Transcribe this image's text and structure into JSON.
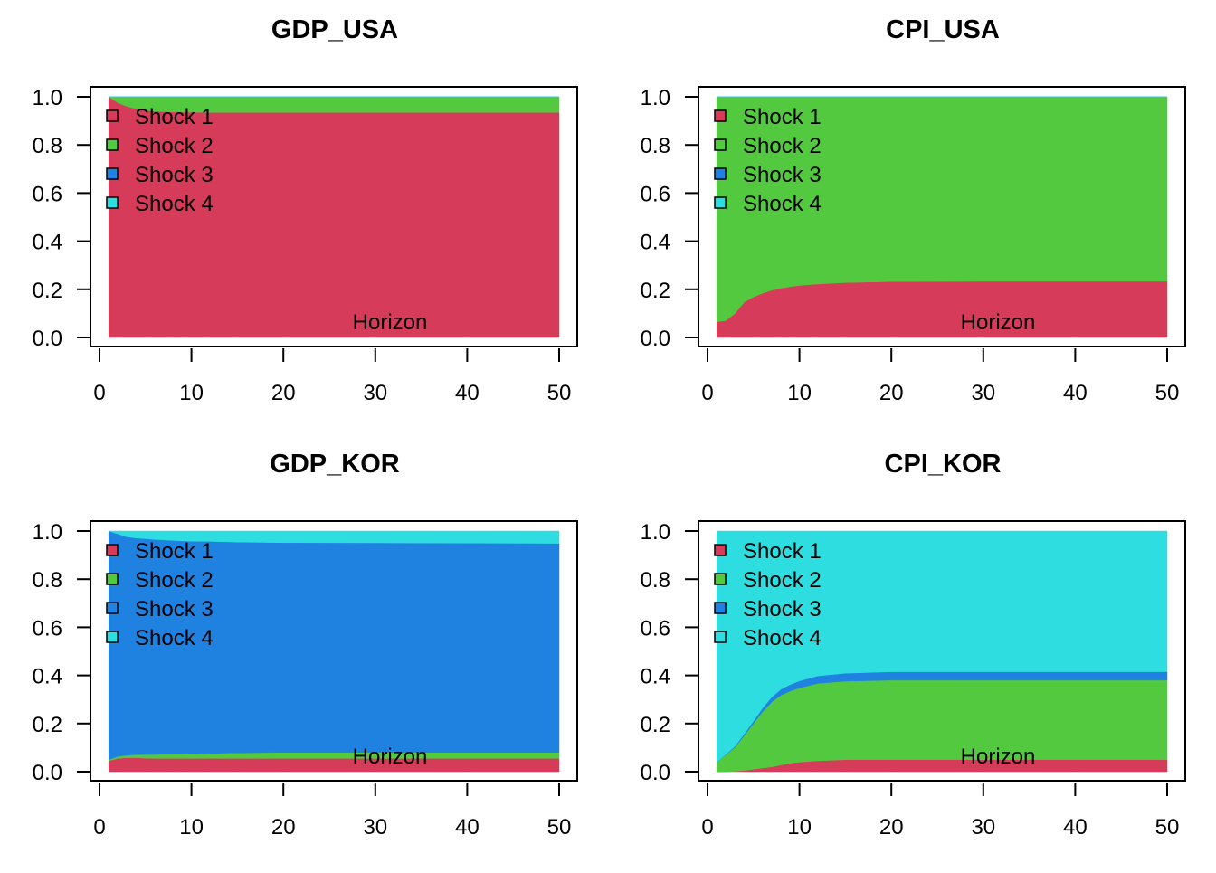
{
  "chart_data": [
    {
      "type": "area",
      "stacked": true,
      "title": "GDP_USA",
      "xlabel": "Horizon",
      "xlim": [
        0,
        50
      ],
      "ylim": [
        0,
        1
      ],
      "xticks": [
        "0",
        "10",
        "20",
        "30",
        "40",
        "50"
      ],
      "yticks": [
        "0.0",
        "0.2",
        "0.4",
        "0.6",
        "0.8",
        "1.0"
      ],
      "legend_position": "top-left",
      "x": [
        1,
        2,
        3,
        4,
        5,
        6,
        7,
        8,
        9,
        10,
        12,
        15,
        20,
        30,
        40,
        50
      ],
      "series": [
        {
          "name": "Shock 1",
          "values": [
            1.0,
            0.975,
            0.96,
            0.95,
            0.944,
            0.94,
            0.938,
            0.937,
            0.936,
            0.936,
            0.935,
            0.935,
            0.935,
            0.935,
            0.935,
            0.935
          ]
        },
        {
          "name": "Shock 2",
          "values": [
            0.0,
            0.025,
            0.04,
            0.05,
            0.056,
            0.06,
            0.062,
            0.063,
            0.064,
            0.064,
            0.065,
            0.065,
            0.065,
            0.065,
            0.065,
            0.065
          ]
        },
        {
          "name": "Shock 3",
          "values": [
            0,
            0,
            0,
            0,
            0,
            0,
            0,
            0,
            0,
            0,
            0,
            0,
            0,
            0,
            0,
            0
          ]
        },
        {
          "name": "Shock 4",
          "values": [
            0,
            0,
            0,
            0,
            0,
            0,
            0,
            0,
            0,
            0,
            0,
            0,
            0,
            0,
            0,
            0
          ]
        }
      ]
    },
    {
      "type": "area",
      "stacked": true,
      "title": "CPI_USA",
      "xlabel": "Horizon",
      "xlim": [
        0,
        50
      ],
      "ylim": [
        0,
        1
      ],
      "xticks": [
        "0",
        "10",
        "20",
        "30",
        "40",
        "50"
      ],
      "yticks": [
        "0.0",
        "0.2",
        "0.4",
        "0.6",
        "0.8",
        "1.0"
      ],
      "legend_position": "top-left",
      "x": [
        1,
        2,
        3,
        4,
        5,
        6,
        7,
        8,
        9,
        10,
        12,
        15,
        20,
        30,
        40,
        50
      ],
      "series": [
        {
          "name": "Shock 1",
          "values": [
            0.065,
            0.07,
            0.1,
            0.147,
            0.168,
            0.184,
            0.196,
            0.205,
            0.211,
            0.216,
            0.222,
            0.228,
            0.232,
            0.233,
            0.233,
            0.233
          ]
        },
        {
          "name": "Shock 2",
          "values": [
            0.935,
            0.93,
            0.9,
            0.853,
            0.832,
            0.816,
            0.804,
            0.795,
            0.789,
            0.784,
            0.778,
            0.772,
            0.768,
            0.767,
            0.767,
            0.767
          ]
        },
        {
          "name": "Shock 3",
          "values": [
            0,
            0,
            0,
            0,
            0,
            0,
            0,
            0,
            0,
            0,
            0,
            0,
            0,
            0,
            0,
            0
          ]
        },
        {
          "name": "Shock 4",
          "values": [
            0,
            0,
            0,
            0,
            0,
            0,
            0,
            0,
            0,
            0,
            0,
            0,
            0,
            0,
            0,
            0
          ]
        }
      ]
    },
    {
      "type": "area",
      "stacked": true,
      "title": "GDP_KOR",
      "xlabel": "Horizon",
      "xlim": [
        0,
        50
      ],
      "ylim": [
        0,
        1
      ],
      "xticks": [
        "0",
        "10",
        "20",
        "30",
        "40",
        "50"
      ],
      "yticks": [
        "0.0",
        "0.2",
        "0.4",
        "0.6",
        "0.8",
        "1.0"
      ],
      "legend_position": "top-left",
      "x": [
        1,
        2,
        3,
        4,
        5,
        6,
        7,
        8,
        9,
        10,
        12,
        15,
        20,
        30,
        40,
        50
      ],
      "series": [
        {
          "name": "Shock 1",
          "values": [
            0.045,
            0.055,
            0.058,
            0.058,
            0.056,
            0.055,
            0.055,
            0.055,
            0.055,
            0.055,
            0.055,
            0.055,
            0.055,
            0.055,
            0.055,
            0.055
          ]
        },
        {
          "name": "Shock 2",
          "values": [
            0.005,
            0.008,
            0.01,
            0.013,
            0.015,
            0.016,
            0.017,
            0.017,
            0.018,
            0.019,
            0.021,
            0.023,
            0.025,
            0.025,
            0.025,
            0.025
          ]
        },
        {
          "name": "Shock 3",
          "values": [
            0.95,
            0.925,
            0.907,
            0.9,
            0.897,
            0.894,
            0.891,
            0.889,
            0.886,
            0.884,
            0.881,
            0.876,
            0.872,
            0.871,
            0.87,
            0.869
          ]
        },
        {
          "name": "Shock 4",
          "values": [
            0.0,
            0.012,
            0.025,
            0.029,
            0.032,
            0.035,
            0.037,
            0.039,
            0.041,
            0.042,
            0.043,
            0.046,
            0.048,
            0.049,
            0.05,
            0.051
          ]
        }
      ]
    },
    {
      "type": "area",
      "stacked": true,
      "title": "CPI_KOR",
      "xlabel": "Horizon",
      "xlim": [
        0,
        50
      ],
      "ylim": [
        0,
        1
      ],
      "xticks": [
        "0",
        "10",
        "20",
        "30",
        "40",
        "50"
      ],
      "yticks": [
        "0.0",
        "0.2",
        "0.4",
        "0.6",
        "0.8",
        "1.0"
      ],
      "legend_position": "top-left",
      "x": [
        1,
        2,
        3,
        4,
        5,
        6,
        7,
        8,
        9,
        10,
        12,
        15,
        20,
        30,
        40,
        50
      ],
      "series": [
        {
          "name": "Shock 1",
          "values": [
            0.0,
            0.0,
            0.002,
            0.005,
            0.01,
            0.015,
            0.02,
            0.028,
            0.035,
            0.04,
            0.045,
            0.05,
            0.05,
            0.05,
            0.05,
            0.05
          ]
        },
        {
          "name": "Shock 2",
          "values": [
            0.04,
            0.07,
            0.1,
            0.145,
            0.19,
            0.235,
            0.27,
            0.29,
            0.3,
            0.308,
            0.322,
            0.326,
            0.33,
            0.33,
            0.33,
            0.33
          ]
        },
        {
          "name": "Shock 3",
          "values": [
            0.0,
            0.002,
            0.004,
            0.007,
            0.01,
            0.015,
            0.02,
            0.025,
            0.027,
            0.029,
            0.031,
            0.033,
            0.035,
            0.035,
            0.035,
            0.035
          ]
        },
        {
          "name": "Shock 4",
          "values": [
            0.96,
            0.928,
            0.894,
            0.843,
            0.79,
            0.735,
            0.69,
            0.657,
            0.638,
            0.623,
            0.602,
            0.591,
            0.585,
            0.585,
            0.585,
            0.585
          ]
        }
      ]
    }
  ],
  "colors": {
    "Shock 1": "#D73B5A",
    "Shock 2": "#53C940",
    "Shock 3": "#2082E0",
    "Shock 4": "#2DDDE0"
  }
}
